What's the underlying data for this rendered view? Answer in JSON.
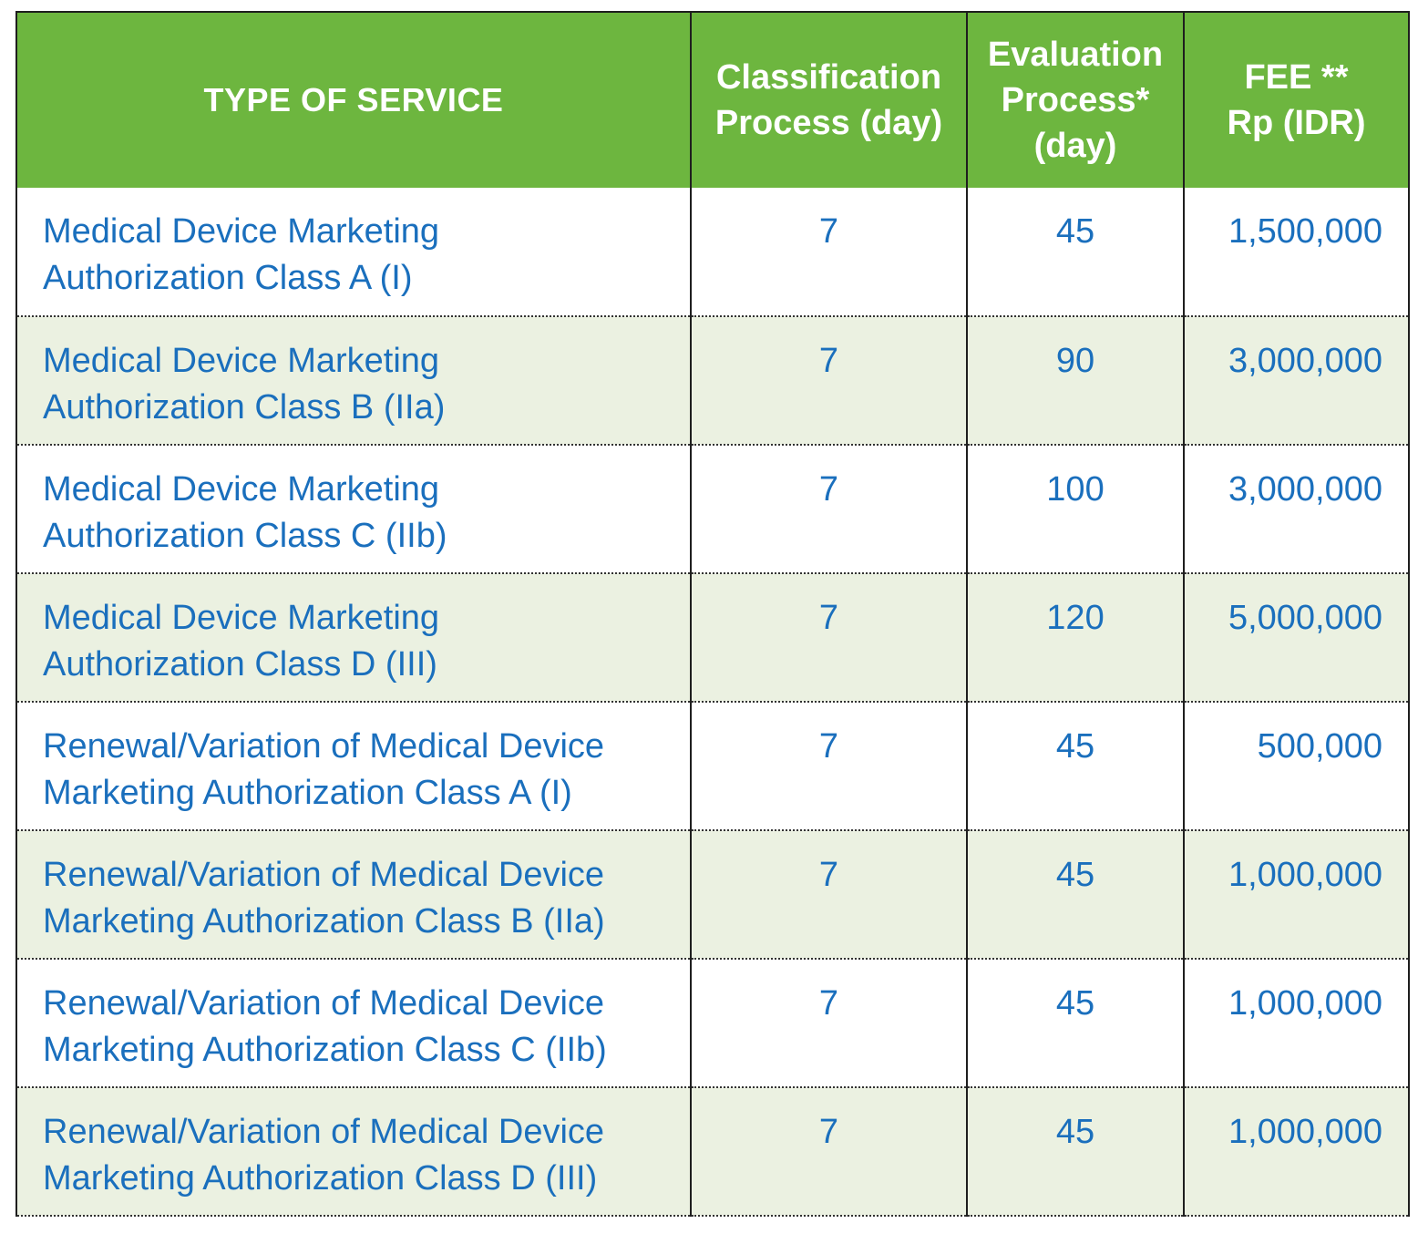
{
  "header": {
    "type_of_service": "TYPE OF SERVICE",
    "classification_line1": "Classification",
    "classification_line2": "Process (day)",
    "evaluation_line1": "Evaluation",
    "evaluation_line2": "Process*",
    "evaluation_line3": "(day)",
    "fee_line1": "FEE **",
    "fee_line2": "Rp (IDR)"
  },
  "rows": [
    {
      "service_line1": "Medical Device Marketing",
      "service_line2": "Authorization Class A (I)",
      "classification": "7",
      "evaluation": "45",
      "fee": "1,500,000"
    },
    {
      "service_line1": "Medical Device Marketing",
      "service_line2": "Authorization Class B (IIa)",
      "classification": "7",
      "evaluation": "90",
      "fee": "3,000,000"
    },
    {
      "service_line1": "Medical Device Marketing",
      "service_line2": "Authorization Class C (IIb)",
      "classification": "7",
      "evaluation": "100",
      "fee": "3,000,000"
    },
    {
      "service_line1": "Medical Device Marketing",
      "service_line2": "Authorization Class D (III)",
      "classification": "7",
      "evaluation": "120",
      "fee": "5,000,000"
    },
    {
      "service_line1": "Renewal/Variation of Medical Device",
      "service_line2": "Marketing Authorization Class A (I)",
      "classification": "7",
      "evaluation": "45",
      "fee": "500,000"
    },
    {
      "service_line1": "Renewal/Variation of Medical Device",
      "service_line2": "Marketing Authorization Class B (IIa)",
      "classification": "7",
      "evaluation": "45",
      "fee": "1,000,000"
    },
    {
      "service_line1": "Renewal/Variation of Medical Device",
      "service_line2": "Marketing Authorization Class C (IIb)",
      "classification": "7",
      "evaluation": "45",
      "fee": "1,000,000"
    },
    {
      "service_line1": "Renewal/Variation of Medical Device",
      "service_line2": "Marketing Authorization Class D (III)",
      "classification": "7",
      "evaluation": "45",
      "fee": "1,000,000"
    }
  ],
  "colors": {
    "header_bg": "#6db63f",
    "header_text": "#ffffff",
    "body_text": "#1a6fbd",
    "alt_row_bg": "#ebf1e1"
  }
}
